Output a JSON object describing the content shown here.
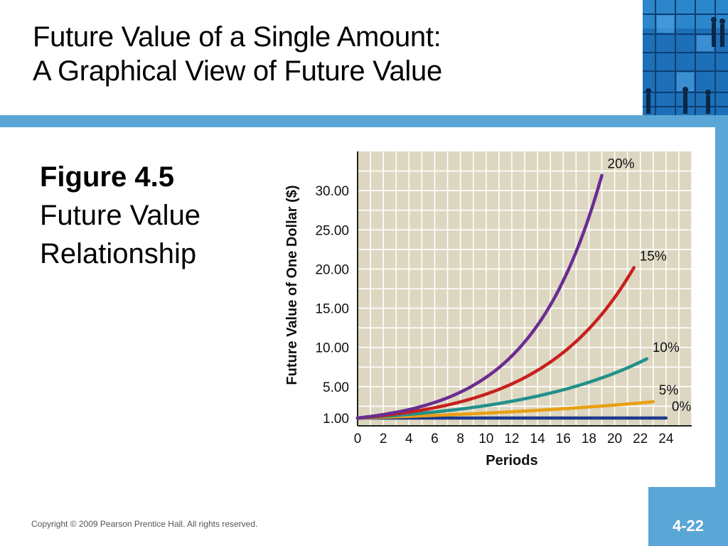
{
  "slide": {
    "title_line1": "Future Value of a Single Amount:",
    "title_line2": "A Graphical View of Future Value",
    "figure_label": "Figure 4.5",
    "figure_caption_line1": "Future Value",
    "figure_caption_line2": "Relationship",
    "copyright": "Copyright © 2009 Pearson Prentice Hall. All rights reserved.",
    "page_number": "4-22"
  },
  "colors": {
    "accent_blue": "#5aa6d6",
    "plot_background": "#ddd6c0",
    "grid": "#ffffff"
  },
  "chart_data": {
    "type": "line",
    "xlabel": "Periods",
    "ylabel": "Future Value of One Dollar ($)",
    "x_ticks": [
      "0",
      "2",
      "4",
      "6",
      "8",
      "10",
      "12",
      "14",
      "16",
      "18",
      "20",
      "22",
      "24"
    ],
    "y_ticks": [
      "1.00",
      "5.00",
      "10.00",
      "15.00",
      "20.00",
      "25.00",
      "30.00"
    ],
    "y_tick_values": [
      1,
      5,
      10,
      15,
      20,
      25,
      30
    ],
    "xlim": [
      0,
      26
    ],
    "ylim": [
      0,
      35
    ],
    "grid": true,
    "legend": "labels at line ends",
    "series": [
      {
        "name": "0%",
        "rate": 0.0,
        "periods": 24,
        "color": "#1f3a8a"
      },
      {
        "name": "5%",
        "rate": 0.05,
        "periods": 23,
        "color": "#e8a013"
      },
      {
        "name": "10%",
        "rate": 0.1,
        "periods": 22.5,
        "color": "#22918a"
      },
      {
        "name": "15%",
        "rate": 0.15,
        "periods": 21.5,
        "color": "#c8201e"
      },
      {
        "name": "20%",
        "rate": 0.2,
        "periods": 19,
        "color": "#6a2c91"
      }
    ]
  }
}
